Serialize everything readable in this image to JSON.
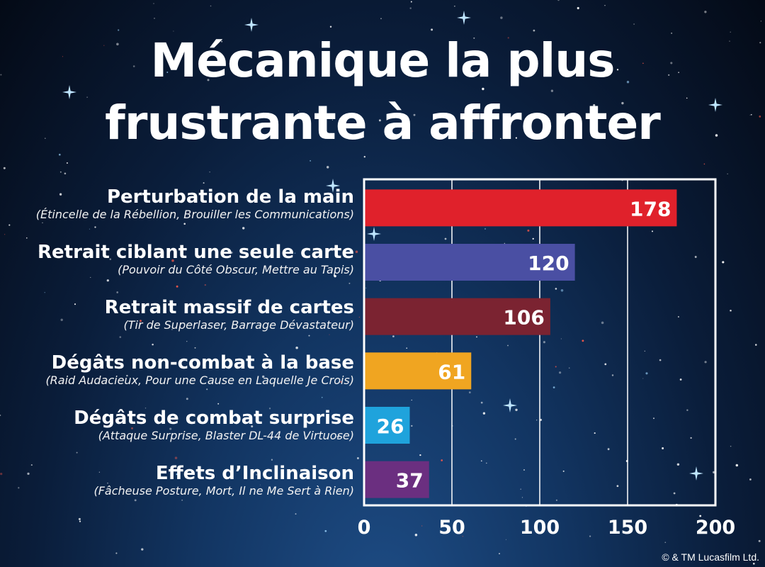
{
  "title": {
    "line1": "Mécanique la plus",
    "line2": "frustrante à affronter"
  },
  "copyright": "© & TM Lucasfilm Ltd.",
  "chart_data": {
    "type": "bar",
    "orientation": "horizontal",
    "title": "Mécanique la plus frustrante à affronter",
    "categories": [
      "Perturbation de la main",
      "Retrait ciblant une seule carte",
      "Retrait massif de cartes",
      "Dégâts non-combat à la base",
      "Dégâts de combat surprise",
      "Effets d’Inclinaison"
    ],
    "subtitles": [
      "(Étincelle de la Rébellion, Brouiller les Communications)",
      "(Pouvoir du Côté Obscur, Mettre au Tapis)",
      "(Tir de Superlaser, Barrage Dévastateur)",
      "(Raid Audacieux, Pour une Cause en Laquelle Je Crois)",
      "(Attaque Surprise, Blaster DL-44 de Virtuose)",
      "(Fâcheuse Posture, Mort, Il ne Me Sert à Rien)"
    ],
    "values": [
      178,
      120,
      106,
      61,
      26,
      37
    ],
    "colors": [
      "#e0212b",
      "#4a4fa3",
      "#7b2331",
      "#f0a521",
      "#1fa3dc",
      "#6b2f80"
    ],
    "xlim": [
      0,
      200
    ],
    "xticks": [
      0,
      50,
      100,
      150,
      200
    ],
    "grid": true,
    "xlabel": "",
    "ylabel": ""
  }
}
